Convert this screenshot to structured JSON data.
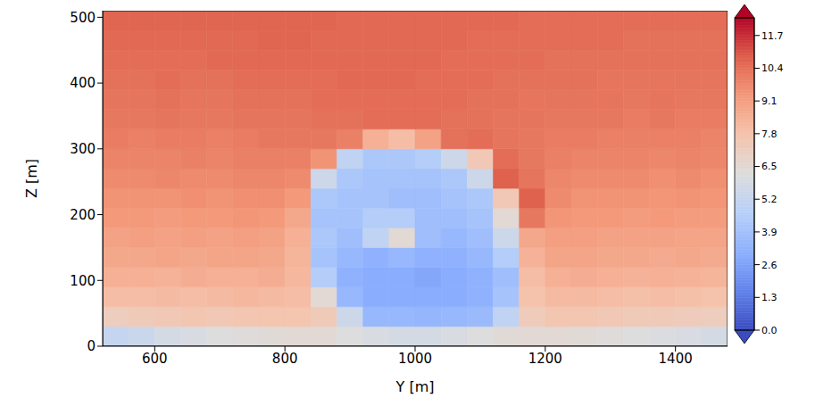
{
  "chart_data": {
    "type": "heatmap",
    "x_label": "Y [m]",
    "y_label": "Z [m]",
    "xlim": [
      520,
      1480
    ],
    "xticks": [
      600,
      800,
      1000,
      1200,
      1400
    ],
    "ylim": [
      0,
      510
    ],
    "yticks": [
      0,
      100,
      200,
      300,
      400,
      500
    ],
    "heatmap": {
      "x": [
        540,
        580,
        620,
        660,
        700,
        740,
        780,
        820,
        860,
        900,
        940,
        980,
        1020,
        1060,
        1100,
        1140,
        1180,
        1220,
        1260,
        1300,
        1340,
        1380,
        1420,
        1460
      ],
      "y": [
        15,
        45,
        75,
        105,
        135,
        165,
        195,
        225,
        255,
        285,
        315,
        345,
        375,
        405,
        435,
        465,
        495
      ],
      "values": [
        [
          5.2,
          5.4,
          5.8,
          6.0,
          6.2,
          6.3,
          6.4,
          6.5,
          6.5,
          6.2,
          6.0,
          5.8,
          5.8,
          6.0,
          6.2,
          6.4,
          6.5,
          6.5,
          6.4,
          6.3,
          6.2,
          6.1,
          6.0,
          5.8
        ],
        [
          7.2,
          7.4,
          7.5,
          7.6,
          7.5,
          7.6,
          7.7,
          7.7,
          7.4,
          5.5,
          3.5,
          3.5,
          3.4,
          3.5,
          3.6,
          5.0,
          7.3,
          7.6,
          7.6,
          7.5,
          7.4,
          7.4,
          7.3,
          7.2
        ],
        [
          8.0,
          8.0,
          8.1,
          8.0,
          8.1,
          8.2,
          8.1,
          8.0,
          6.5,
          3.5,
          3.0,
          3.0,
          3.0,
          3.0,
          3.2,
          4.0,
          7.8,
          8.1,
          8.1,
          8.0,
          7.9,
          8.0,
          7.9,
          7.8
        ],
        [
          8.5,
          8.5,
          8.4,
          8.6,
          8.5,
          8.5,
          8.6,
          8.2,
          4.5,
          3.2,
          3.0,
          3.0,
          2.8,
          3.0,
          3.2,
          3.8,
          8.0,
          8.5,
          8.6,
          8.5,
          8.4,
          8.5,
          8.4,
          8.3
        ],
        [
          8.8,
          8.8,
          8.9,
          8.8,
          8.9,
          8.9,
          8.8,
          8.3,
          4.0,
          3.5,
          3.2,
          3.5,
          3.2,
          3.2,
          3.5,
          4.5,
          8.4,
          8.9,
          8.9,
          8.8,
          8.8,
          8.7,
          8.8,
          8.7
        ],
        [
          9.0,
          9.1,
          9.0,
          9.1,
          9.0,
          9.1,
          9.0,
          8.5,
          4.2,
          3.8,
          5.0,
          6.5,
          3.8,
          3.5,
          3.8,
          5.5,
          8.8,
          9.1,
          9.1,
          9.0,
          9.0,
          9.0,
          8.9,
          8.9
        ],
        [
          9.3,
          9.3,
          9.2,
          9.3,
          9.3,
          9.4,
          9.3,
          8.8,
          4.0,
          4.0,
          4.5,
          4.5,
          3.8,
          3.8,
          4.0,
          6.5,
          10.2,
          9.4,
          9.3,
          9.3,
          9.2,
          9.3,
          9.2,
          9.2
        ],
        [
          9.5,
          9.5,
          9.5,
          9.6,
          9.5,
          9.6,
          9.6,
          9.3,
          4.2,
          4.0,
          4.0,
          3.8,
          3.8,
          4.0,
          4.2,
          7.5,
          10.8,
          9.7,
          9.5,
          9.5,
          9.5,
          9.4,
          9.5,
          9.4
        ],
        [
          9.7,
          9.7,
          9.8,
          9.7,
          9.7,
          9.8,
          9.8,
          9.7,
          5.5,
          4.2,
          4.0,
          4.0,
          4.0,
          4.2,
          5.5,
          10.8,
          10.3,
          9.8,
          9.7,
          9.7,
          9.7,
          9.6,
          9.7,
          9.6
        ],
        [
          9.9,
          9.9,
          9.9,
          10.0,
          9.9,
          10.0,
          10.0,
          10.0,
          9.5,
          5.0,
          4.2,
          4.2,
          4.5,
          5.5,
          7.5,
          10.5,
          10.2,
          10.0,
          9.9,
          9.9,
          9.9,
          9.8,
          9.9,
          9.8
        ],
        [
          10.1,
          10.0,
          10.1,
          10.1,
          10.0,
          10.1,
          10.2,
          10.2,
          10.2,
          10.0,
          8.5,
          8.0,
          9.0,
          10.4,
          10.5,
          10.3,
          10.2,
          10.1,
          10.1,
          10.0,
          10.0,
          10.0,
          10.0,
          9.9
        ],
        [
          10.2,
          10.2,
          10.3,
          10.2,
          10.2,
          10.3,
          10.3,
          10.3,
          10.4,
          10.4,
          10.5,
          10.5,
          10.5,
          10.4,
          10.4,
          10.3,
          10.3,
          10.2,
          10.2,
          10.2,
          10.1,
          10.2,
          10.1,
          10.1
        ],
        [
          10.3,
          10.3,
          10.4,
          10.3,
          10.3,
          10.4,
          10.4,
          10.4,
          10.5,
          10.5,
          10.5,
          10.5,
          10.5,
          10.5,
          10.4,
          10.4,
          10.3,
          10.3,
          10.3,
          10.3,
          10.2,
          10.3,
          10.2,
          10.2
        ],
        [
          10.4,
          10.4,
          10.5,
          10.4,
          10.4,
          10.5,
          10.5,
          10.5,
          10.5,
          10.6,
          10.6,
          10.6,
          10.5,
          10.5,
          10.5,
          10.4,
          10.4,
          10.4,
          10.4,
          10.3,
          10.3,
          10.3,
          10.3,
          10.3
        ],
        [
          10.5,
          10.5,
          10.5,
          10.5,
          10.6,
          10.6,
          10.6,
          10.6,
          10.6,
          10.6,
          10.6,
          10.6,
          10.6,
          10.5,
          10.5,
          10.5,
          10.5,
          10.4,
          10.4,
          10.4,
          10.4,
          10.4,
          10.4,
          10.4
        ],
        [
          10.6,
          10.6,
          10.6,
          10.6,
          10.6,
          10.6,
          10.7,
          10.7,
          10.6,
          10.6,
          10.6,
          10.6,
          10.6,
          10.6,
          10.5,
          10.5,
          10.5,
          10.5,
          10.5,
          10.5,
          10.4,
          10.4,
          10.4,
          10.4
        ],
        [
          10.7,
          10.7,
          10.7,
          10.7,
          10.7,
          10.7,
          10.7,
          10.7,
          10.7,
          10.6,
          10.6,
          10.6,
          10.6,
          10.6,
          10.6,
          10.6,
          10.5,
          10.5,
          10.5,
          10.5,
          10.5,
          10.5,
          10.5,
          10.5
        ]
      ]
    },
    "colorbar": {
      "range": [
        0,
        12.4
      ],
      "ticks": [
        {
          "value": 0,
          "label": "0.0"
        },
        1.3,
        2.6,
        3.9,
        5.2,
        6.5,
        7.8,
        9.1,
        10.4,
        11.7
      ]
    }
  }
}
